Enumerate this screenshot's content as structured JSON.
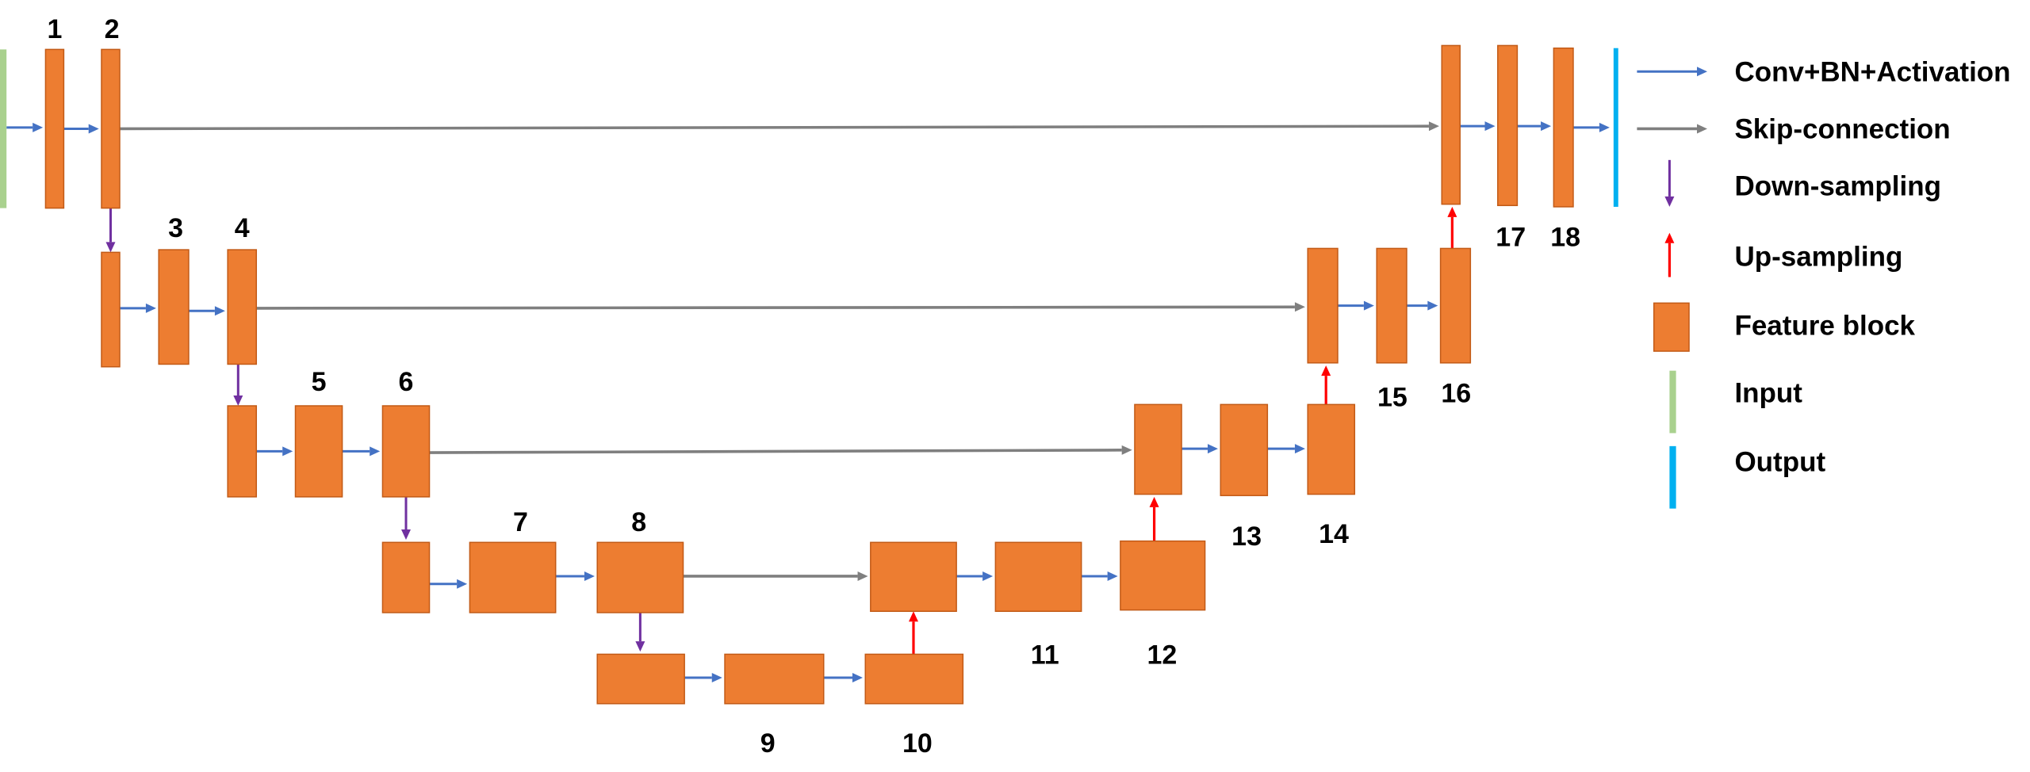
{
  "diagram": {
    "block_labels": [
      "1",
      "2",
      "3",
      "4",
      "5",
      "6",
      "7",
      "8",
      "9",
      "10",
      "11",
      "12",
      "13",
      "14",
      "15",
      "16",
      "17",
      "18"
    ],
    "legend": [
      {
        "icon": "conv-arrow-icon",
        "label": "Conv+BN+Activation"
      },
      {
        "icon": "skip-arrow-icon",
        "label": "Skip-connection"
      },
      {
        "icon": "down-arrow-icon",
        "label": "Down-sampling"
      },
      {
        "icon": "up-arrow-icon",
        "label": "Up-sampling"
      },
      {
        "icon": "feature-block-icon",
        "label": "Feature block"
      },
      {
        "icon": "input-bar-icon",
        "label": "Input"
      },
      {
        "icon": "output-bar-icon",
        "label": "Output"
      }
    ],
    "colors": {
      "block_fill": "#ED7D31",
      "block_stroke": "#C25A16",
      "conv": "#4472C4",
      "skip": "#7F7F7F",
      "down": "#7030A0",
      "up": "#FF0000",
      "input": "#A9D18E",
      "output": "#00B0F0"
    }
  }
}
